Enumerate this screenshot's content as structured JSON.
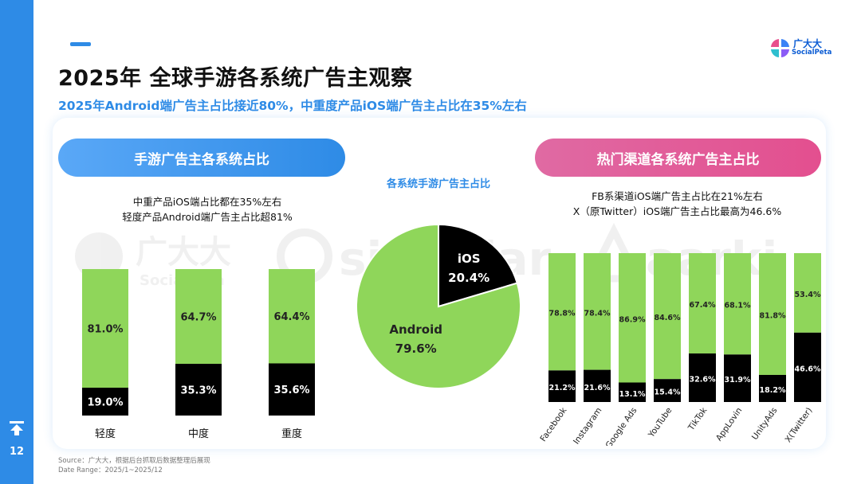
{
  "page": {
    "title": "2025年 全球手游各系统广告主观察",
    "subtitle": "2025年Android端广告主占比接近80%，中重度产品iOS端广告主占比在35%左右",
    "page_number": "12",
    "brand_name": "广大大",
    "brand_sub": "SocialPeta",
    "source_line1": "Source：广大大，根据后台抓取后数据整理后展现",
    "source_line2": "Date Range：2025/1~2025/12",
    "watermarks": [
      "广大大",
      "SocialPeta",
      "singular",
      "aarki"
    ]
  },
  "left_section": {
    "header": "手游广告主各系统占比",
    "note_line1": "中重产品iOS端占比都在35%左右",
    "note_line2": "轻度产品Android端广告主占比超81%"
  },
  "middle_section": {
    "header": "各系统手游广告主占比"
  },
  "right_section": {
    "header": "热门渠道各系统广告主占比",
    "note_line1": "FB系渠道iOS端广告主占比在21%左右",
    "note_line2": "X（原Twitter）iOS端广告主占比最高为46.6%"
  },
  "colors": {
    "android": "#8fd65a",
    "ios": "#000000",
    "accent": "#2e8be6",
    "pink": "#e34f8f"
  },
  "chart_data": [
    {
      "type": "bar",
      "stacked": true,
      "normalized": true,
      "categories": [
        "轻度",
        "中度",
        "重度"
      ],
      "series": [
        {
          "values": [
            19.0,
            35.3,
            35.6
          ],
          "labels": [
            "19.0%",
            "35.3%",
            "35.6%"
          ]
        },
        {
          "values": [
            81.0,
            64.7,
            64.4
          ],
          "labels": [
            "81.0%",
            "64.7%",
            "64.4%"
          ]
        }
      ],
      "ylim": [
        0,
        100
      ]
    },
    {
      "type": "pie",
      "title": "各系统手游广告主占比",
      "slices": [
        {
          "name": "iOS",
          "value": 20.4,
          "label": "20.4%"
        },
        {
          "name": "Android",
          "value": 79.6,
          "label": "79.6%"
        }
      ]
    },
    {
      "type": "bar",
      "stacked": true,
      "normalized": true,
      "categories": [
        "Facebook",
        "Instagram",
        "Google Ads",
        "YouTube",
        "TikTok",
        "AppLovin",
        "UnityAds",
        "X(Twitter)"
      ],
      "series": [
        {
          "values": [
            21.2,
            21.6,
            13.1,
            15.4,
            32.6,
            31.9,
            18.2,
            46.6
          ],
          "labels": [
            "21.2%",
            "21.6%",
            "13.1%",
            "15.4%",
            "32.6%",
            "31.9%",
            "18.2%",
            "46.6%"
          ]
        },
        {
          "values": [
            78.8,
            78.4,
            86.9,
            84.6,
            67.4,
            68.1,
            81.8,
            53.4
          ],
          "labels": [
            "78.8%",
            "78.4%",
            "86.9%",
            "84.6%",
            "67.4%",
            "68.1%",
            "81.8%",
            "53.4%"
          ]
        }
      ],
      "ylim": [
        0,
        100
      ]
    }
  ]
}
